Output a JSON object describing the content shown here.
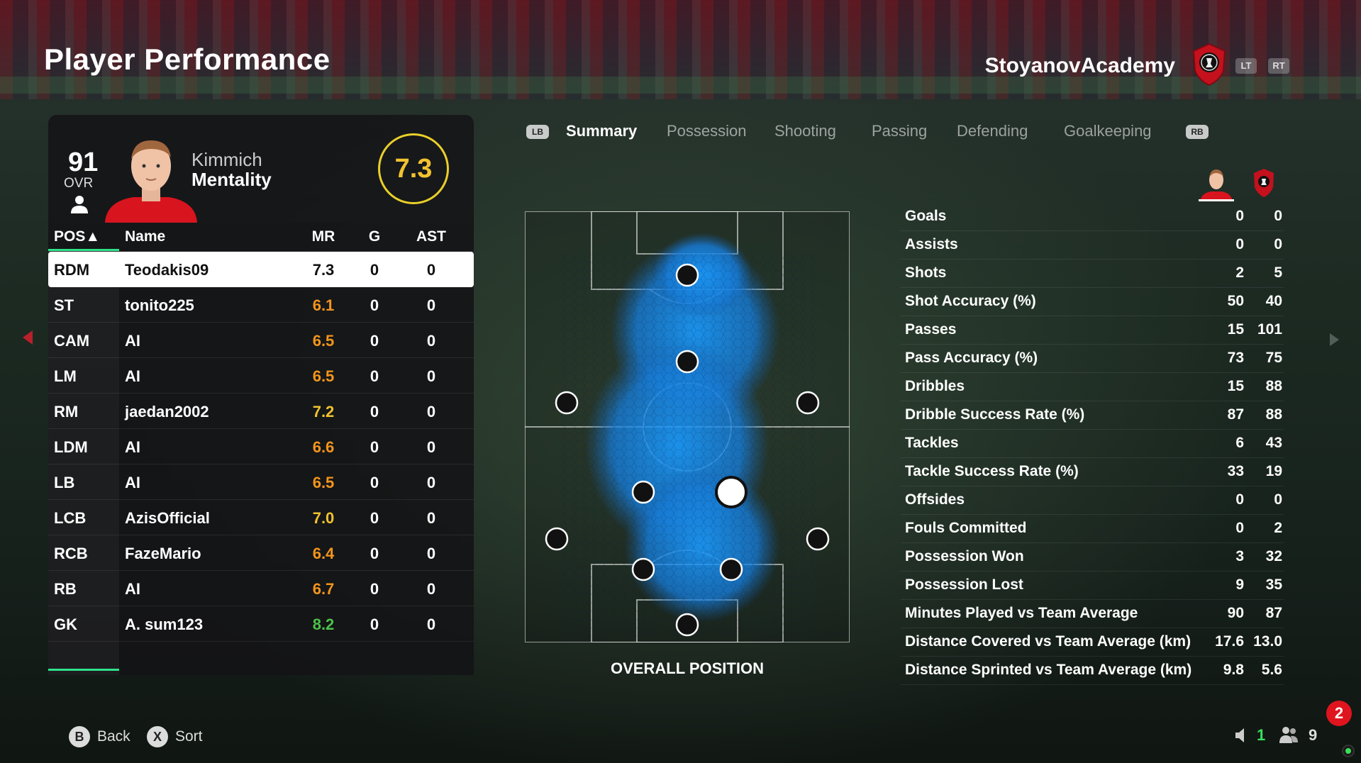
{
  "header": {
    "title": "Player Performance",
    "club_name": "StoyanovAcademy",
    "lt_label": "LT",
    "rt_label": "RT"
  },
  "player": {
    "ovr": "91",
    "ovr_label": "OVR",
    "first_name": "Kimmich",
    "last_name": "Mentality",
    "rating": "7.3"
  },
  "table": {
    "headers": {
      "pos": "POS▲",
      "name": "Name",
      "mr": "MR",
      "g": "G",
      "ast": "AST"
    },
    "rows": [
      {
        "pos": "RDM",
        "name": "Teodakis09",
        "mr": "7.3",
        "g": "0",
        "ast": "0",
        "mr_color": "#111111"
      },
      {
        "pos": "ST",
        "name": "tonito225",
        "mr": "6.1",
        "g": "0",
        "ast": "0",
        "mr_color": "#f2951d"
      },
      {
        "pos": "CAM",
        "name": "AI",
        "mr": "6.5",
        "g": "0",
        "ast": "0",
        "mr_color": "#f2951d"
      },
      {
        "pos": "LM",
        "name": "AI",
        "mr": "6.5",
        "g": "0",
        "ast": "0",
        "mr_color": "#f2951d"
      },
      {
        "pos": "RM",
        "name": "jaedan2002",
        "mr": "7.2",
        "g": "0",
        "ast": "0",
        "mr_color": "#f2c230"
      },
      {
        "pos": "LDM",
        "name": "AI",
        "mr": "6.6",
        "g": "0",
        "ast": "0",
        "mr_color": "#f2951d"
      },
      {
        "pos": "LB",
        "name": "AI",
        "mr": "6.5",
        "g": "0",
        "ast": "0",
        "mr_color": "#f2951d"
      },
      {
        "pos": "LCB",
        "name": "AzisOfficial",
        "mr": "7.0",
        "g": "0",
        "ast": "0",
        "mr_color": "#f2c230"
      },
      {
        "pos": "RCB",
        "name": "FazeMario",
        "mr": "6.4",
        "g": "0",
        "ast": "0",
        "mr_color": "#f2951d"
      },
      {
        "pos": "RB",
        "name": "AI",
        "mr": "6.7",
        "g": "0",
        "ast": "0",
        "mr_color": "#f2951d"
      },
      {
        "pos": "GK",
        "name": "A. sum123",
        "mr": "8.2",
        "g": "0",
        "ast": "0",
        "mr_color": "#4cc24a"
      }
    ]
  },
  "tabs": {
    "lb": "LB",
    "rb": "RB",
    "items": [
      "Summary",
      "Possession",
      "Shooting",
      "Passing",
      "Defending",
      "Goalkeeping"
    ],
    "active": "Summary"
  },
  "pitch": {
    "label": "OVERALL POSITION"
  },
  "stats": [
    {
      "label": "Goals",
      "player": "0",
      "team": "0"
    },
    {
      "label": "Assists",
      "player": "0",
      "team": "0"
    },
    {
      "label": "Shots",
      "player": "2",
      "team": "5"
    },
    {
      "label": "Shot Accuracy (%)",
      "player": "50",
      "team": "40"
    },
    {
      "label": "Passes",
      "player": "15",
      "team": "101"
    },
    {
      "label": "Pass Accuracy (%)",
      "player": "73",
      "team": "75"
    },
    {
      "label": "Dribbles",
      "player": "15",
      "team": "88"
    },
    {
      "label": "Dribble Success Rate (%)",
      "player": "87",
      "team": "88"
    },
    {
      "label": "Tackles",
      "player": "6",
      "team": "43"
    },
    {
      "label": "Tackle Success Rate (%)",
      "player": "33",
      "team": "19"
    },
    {
      "label": "Offsides",
      "player": "0",
      "team": "0"
    },
    {
      "label": "Fouls Committed",
      "player": "0",
      "team": "2"
    },
    {
      "label": "Possession Won",
      "player": "3",
      "team": "32"
    },
    {
      "label": "Possession Lost",
      "player": "9",
      "team": "35"
    },
    {
      "label": "Minutes Played vs Team Average",
      "player": "90",
      "team": "87"
    },
    {
      "label": "Distance Covered vs Team Average (km)",
      "player": "17.6",
      "team": "13.0"
    },
    {
      "label": "Distance Sprinted vs Team Average (km)",
      "player": "9.8",
      "team": "5.6"
    }
  ],
  "footer": {
    "back_key": "B",
    "back_label": "Back",
    "sort_key": "X",
    "sort_label": "Sort",
    "notifications": "2",
    "status_a": "1",
    "status_b": "9"
  },
  "colors": {
    "accent_green": "#2ee28a",
    "rating_ring": "#e9cf2a",
    "crest_red": "#c4111d"
  }
}
